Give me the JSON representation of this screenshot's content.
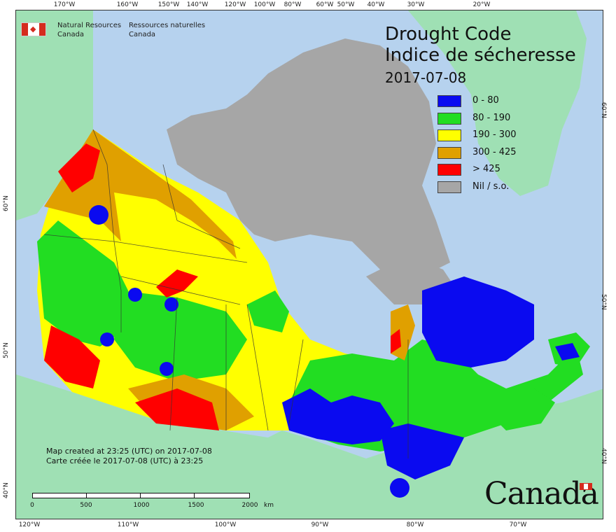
{
  "agency": {
    "name_en_line1": "Natural Resources",
    "name_en_line2": "Canada",
    "name_fr_line1": "Ressources naturelles",
    "name_fr_line2": "Canada"
  },
  "title": {
    "line1": "Drought Code",
    "line2": "Indice de sécheresse",
    "date": "2017-07-08"
  },
  "legend": [
    {
      "label": "0 - 80",
      "color": "#0a0af0"
    },
    {
      "label": "80 - 190",
      "color": "#22dd22"
    },
    {
      "label": "190 - 300",
      "color": "#ffff00"
    },
    {
      "label": "300 - 425",
      "color": "#e0a000"
    },
    {
      "label": "> 425",
      "color": "#ff0000"
    },
    {
      "label": "Nil / s.o.",
      "color": "#a6a6a6"
    }
  ],
  "credit": {
    "line1": "Map created at 23:25 (UTC) on 2017-07-08",
    "line2": "Carte créée le 2017-07-08 (UTC) à 23:25"
  },
  "scale": {
    "labels": [
      "0",
      "500",
      "1000",
      "1500",
      "2000"
    ],
    "unit": "km"
  },
  "ticks_top": [
    "170°W",
    "160°W",
    "150°W",
    "140°W",
    "120°W",
    "100°W",
    "80°W",
    "60°W",
    "50°W",
    "40°W",
    "30°W",
    "20°W"
  ],
  "ticks_bottom": [
    "120°W",
    "110°W",
    "100°W",
    "90°W",
    "80°W",
    "70°W"
  ],
  "ticks_left": [
    "60°N",
    "50°N",
    "40°N"
  ],
  "ticks_right": [
    "60°N",
    "50°N",
    "40°N"
  ],
  "wordmark": "Canada",
  "colors": {
    "ocean": "#b6d2ee",
    "land_outside": "#9fe0b4",
    "no_data": "#a6a6a6"
  }
}
